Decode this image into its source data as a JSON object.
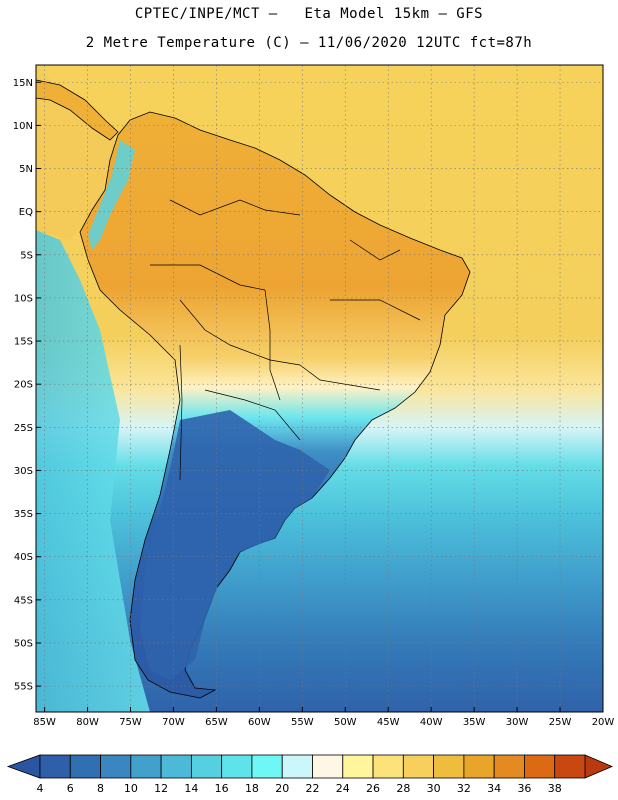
{
  "title": {
    "line1": "CPTEC/INPE/MCT –   Eta Model 15km – GFS",
    "line2": "2 Metre Temperature (C) – 11/06/2020 12UTC fct=87h"
  },
  "axes": {
    "lat_labels": [
      "15N",
      "10N",
      "5N",
      "EQ",
      "5S",
      "10S",
      "15S",
      "20S",
      "25S",
      "30S",
      "35S",
      "40S",
      "45S",
      "50S",
      "55S"
    ],
    "lat_values": [
      15,
      10,
      5,
      0,
      -5,
      -10,
      -15,
      -20,
      -25,
      -30,
      -35,
      -40,
      -45,
      -50,
      -55
    ],
    "lon_labels": [
      "85W",
      "80W",
      "75W",
      "70W",
      "65W",
      "60W",
      "55W",
      "50W",
      "45W",
      "40W",
      "35W",
      "30W",
      "25W",
      "20W"
    ],
    "lon_values": [
      -85,
      -80,
      -75,
      -70,
      -65,
      -60,
      -55,
      -50,
      -45,
      -40,
      -35,
      -30,
      -25,
      -20
    ],
    "lat_range": [
      -58,
      17
    ],
    "lon_range": [
      -86,
      -20
    ],
    "grid": "dotted"
  },
  "colorbar": {
    "labels": [
      "4",
      "6",
      "8",
      "10",
      "12",
      "14",
      "16",
      "18",
      "20",
      "22",
      "24",
      "26",
      "28",
      "30",
      "32",
      "34",
      "36",
      "38"
    ],
    "colors": [
      "#2f5fa8",
      "#2f6fb2",
      "#3b86c0",
      "#42a1cc",
      "#4cb9d8",
      "#55d0e0",
      "#5fe3ea",
      "#6ff7f5",
      "#ccf7fa",
      "#fff7e6",
      "#fff59a",
      "#fbe27a",
      "#f6cf5c",
      "#efbd3e",
      "#e9a52a",
      "#e38a20",
      "#dc6a14",
      "#c94710"
    ],
    "under_color": "#2a55a0",
    "over_color": "#b83a0e"
  },
  "colors": {
    "ocean_north": "#f1c24c",
    "ocean_south": "#2f6fb2",
    "land_warm": "#efb33a",
    "land_hot": "#e8a02c",
    "land_cool": "#2d63ad",
    "border": "#000000"
  }
}
